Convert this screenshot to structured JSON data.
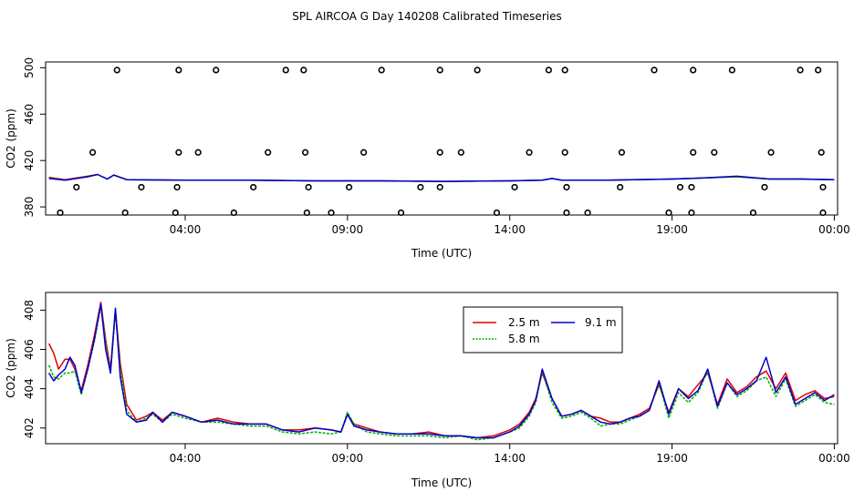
{
  "title": "SPL AIRCOA G  Day 140208  Calibrated Timeseries",
  "colors": {
    "c25": "#e00000",
    "c58": "#00b000",
    "c91": "#0000cc"
  },
  "chart_data": [
    {
      "type": "line",
      "name": "top",
      "xlabel": "Time (UTC)",
      "ylabel": "CO2 (ppm)",
      "xlim": [
        -0.3,
        24.1
      ],
      "ylim": [
        373,
        505
      ],
      "xticks": [
        4,
        9,
        14,
        19,
        24
      ],
      "xtick_labels": [
        "04:00",
        "09:00",
        "14:00",
        "19:00",
        "00:00"
      ],
      "yticks": [
        380,
        420,
        460,
        500
      ],
      "ytick_labels": [
        "380",
        "420",
        "460",
        "500"
      ],
      "legend": "none",
      "outlier_points": [
        [
          1.9,
          498
        ],
        [
          3.8,
          498
        ],
        [
          4.95,
          498
        ],
        [
          7.1,
          498
        ],
        [
          7.65,
          498
        ],
        [
          10.05,
          498
        ],
        [
          11.85,
          498
        ],
        [
          13.0,
          498
        ],
        [
          15.2,
          498
        ],
        [
          15.7,
          498
        ],
        [
          18.45,
          498
        ],
        [
          19.65,
          498
        ],
        [
          20.85,
          498
        ],
        [
          22.95,
          498
        ],
        [
          23.5,
          498
        ],
        [
          1.15,
          427
        ],
        [
          3.8,
          427
        ],
        [
          4.4,
          427
        ],
        [
          6.55,
          427
        ],
        [
          7.7,
          427
        ],
        [
          9.5,
          427
        ],
        [
          11.85,
          427
        ],
        [
          12.5,
          427
        ],
        [
          14.6,
          427
        ],
        [
          15.7,
          427
        ],
        [
          17.45,
          427
        ],
        [
          19.65,
          427
        ],
        [
          20.3,
          427
        ],
        [
          22.05,
          427
        ],
        [
          23.6,
          427
        ],
        [
          0.65,
          397
        ],
        [
          2.65,
          397
        ],
        [
          3.75,
          397
        ],
        [
          6.1,
          397
        ],
        [
          7.8,
          397
        ],
        [
          9.05,
          397
        ],
        [
          11.25,
          397
        ],
        [
          11.85,
          397
        ],
        [
          14.15,
          397
        ],
        [
          15.75,
          397
        ],
        [
          17.4,
          397
        ],
        [
          19.25,
          397
        ],
        [
          19.6,
          397
        ],
        [
          21.85,
          397
        ],
        [
          23.65,
          397
        ],
        [
          0.15,
          375
        ],
        [
          2.15,
          375
        ],
        [
          3.7,
          375
        ],
        [
          5.5,
          375
        ],
        [
          7.75,
          375
        ],
        [
          8.5,
          375
        ],
        [
          10.65,
          375
        ],
        [
          13.6,
          375
        ],
        [
          15.75,
          375
        ],
        [
          16.4,
          375
        ],
        [
          18.9,
          375
        ],
        [
          19.6,
          375
        ],
        [
          21.5,
          375
        ],
        [
          23.65,
          375
        ]
      ],
      "series": [
        {
          "name": "2.5 m",
          "color": "#e00000",
          "x": [
            -0.2,
            0.3,
            1.0,
            1.3,
            1.6,
            1.8,
            2.2,
            4,
            6,
            8,
            10,
            12,
            14,
            15,
            15.3,
            15.6,
            17,
            19,
            20,
            21,
            22,
            23,
            24
          ],
          "y": [
            405.5,
            403.5,
            406.5,
            408.0,
            404.0,
            407.5,
            403.5,
            403.0,
            403.0,
            402.5,
            402.5,
            402.0,
            402.5,
            403.0,
            404.5,
            403.0,
            403.0,
            404.0,
            405.0,
            406.0,
            404.0,
            404.0,
            403.5
          ]
        },
        {
          "name": "5.8 m",
          "color": "#00b000",
          "x": [
            -0.2,
            0.3,
            1.0,
            1.3,
            1.6,
            1.8,
            2.2,
            4,
            6,
            8,
            10,
            12,
            14,
            15,
            15.3,
            15.6,
            17,
            19,
            20,
            21,
            22,
            23,
            24
          ],
          "y": [
            405.0,
            403.0,
            406.0,
            408.0,
            404.0,
            407.5,
            403.5,
            403.0,
            403.0,
            402.5,
            402.5,
            402.0,
            402.5,
            403.0,
            404.5,
            403.0,
            403.0,
            404.0,
            405.0,
            406.0,
            404.0,
            404.0,
            403.5
          ]
        },
        {
          "name": "9.1 m",
          "color": "#0000cc",
          "x": [
            -0.2,
            0.3,
            1.0,
            1.3,
            1.6,
            1.8,
            2.2,
            4,
            6,
            8,
            10,
            12,
            14,
            15,
            15.3,
            15.6,
            17,
            19,
            20,
            21,
            22,
            23,
            24
          ],
          "y": [
            404.5,
            403.0,
            406.0,
            408.0,
            404.0,
            407.5,
            403.5,
            403.0,
            403.0,
            402.5,
            402.5,
            402.0,
            402.5,
            403.0,
            404.5,
            403.0,
            403.0,
            404.0,
            405.0,
            406.5,
            404.0,
            404.0,
            403.5
          ]
        }
      ]
    },
    {
      "type": "line",
      "name": "bottom",
      "xlabel": "Time (UTC)",
      "ylabel": "CO2 (ppm)",
      "xlim": [
        -0.3,
        24.1
      ],
      "ylim": [
        401.2,
        408.9
      ],
      "xticks": [
        4,
        9,
        14,
        19,
        24
      ],
      "xtick_labels": [
        "04:00",
        "09:00",
        "14:00",
        "19:00",
        "00:00"
      ],
      "yticks": [
        402,
        404,
        406,
        408
      ],
      "ytick_labels": [
        "402",
        "404",
        "406",
        "408"
      ],
      "legend": "top-center",
      "legend_entries": [
        {
          "label": "2.5 m",
          "color": "#e00000"
        },
        {
          "label": "5.8 m",
          "color": "#00b000"
        },
        {
          "label": "9.1 m",
          "color": "#0000cc"
        }
      ],
      "series": [
        {
          "name": "2.5 m",
          "color": "#e00000",
          "x": [
            -0.2,
            -0.05,
            0.1,
            0.3,
            0.45,
            0.6,
            0.8,
            1.0,
            1.2,
            1.4,
            1.55,
            1.7,
            1.85,
            2.0,
            2.2,
            2.5,
            2.8,
            3.0,
            3.3,
            3.6,
            4.0,
            4.5,
            5.0,
            5.5,
            6.0,
            6.5,
            7.0,
            7.5,
            8.0,
            8.5,
            8.8,
            9.0,
            9.2,
            9.6,
            10.0,
            10.5,
            11.0,
            11.5,
            12.0,
            12.5,
            13.0,
            13.5,
            14.0,
            14.3,
            14.6,
            14.8,
            15.0,
            15.3,
            15.6,
            15.9,
            16.2,
            16.5,
            16.8,
            17.1,
            17.4,
            17.7,
            18.0,
            18.3,
            18.6,
            18.9,
            19.2,
            19.5,
            19.8,
            20.1,
            20.4,
            20.7,
            21.0,
            21.3,
            21.6,
            21.9,
            22.2,
            22.5,
            22.8,
            23.1,
            23.4,
            23.7,
            24.0
          ],
          "y": [
            406.3,
            405.8,
            405.0,
            405.5,
            405.5,
            405.0,
            403.9,
            405.2,
            406.7,
            408.4,
            406.5,
            405.0,
            408.0,
            405.3,
            403.2,
            402.4,
            402.6,
            402.8,
            402.4,
            402.8,
            402.6,
            402.3,
            402.5,
            402.3,
            402.2,
            402.2,
            401.9,
            401.9,
            402.0,
            401.9,
            401.8,
            402.7,
            402.2,
            402.0,
            401.8,
            401.7,
            401.7,
            401.8,
            401.6,
            401.6,
            401.5,
            401.6,
            401.9,
            402.2,
            402.8,
            403.5,
            404.8,
            403.5,
            402.6,
            402.7,
            402.9,
            402.6,
            402.5,
            402.3,
            402.3,
            402.5,
            402.7,
            403.0,
            404.2,
            402.8,
            404.0,
            403.6,
            404.2,
            404.8,
            403.2,
            404.5,
            403.8,
            404.1,
            404.6,
            404.9,
            404.0,
            404.8,
            403.4,
            403.7,
            403.9,
            403.5,
            403.6
          ]
        },
        {
          "name": "5.8 m",
          "color": "#00b000",
          "x": [
            -0.2,
            -0.05,
            0.1,
            0.3,
            0.45,
            0.6,
            0.8,
            1.0,
            1.2,
            1.4,
            1.55,
            1.7,
            1.85,
            2.0,
            2.2,
            2.5,
            2.8,
            3.0,
            3.3,
            3.6,
            4.0,
            4.5,
            5.0,
            5.5,
            6.0,
            6.5,
            7.0,
            7.5,
            8.0,
            8.5,
            8.8,
            9.0,
            9.2,
            9.6,
            10.0,
            10.5,
            11.0,
            11.5,
            12.0,
            12.5,
            13.0,
            13.5,
            14.0,
            14.3,
            14.6,
            14.8,
            15.0,
            15.3,
            15.6,
            15.9,
            16.2,
            16.5,
            16.8,
            17.1,
            17.4,
            17.7,
            18.0,
            18.3,
            18.6,
            18.9,
            19.2,
            19.5,
            19.8,
            20.1,
            20.4,
            20.7,
            21.0,
            21.3,
            21.6,
            21.9,
            22.2,
            22.5,
            22.8,
            23.1,
            23.4,
            23.7,
            24.0
          ],
          "y": [
            405.2,
            404.6,
            404.5,
            404.8,
            404.8,
            404.9,
            403.7,
            405.0,
            406.4,
            408.2,
            406.3,
            404.8,
            407.9,
            405.0,
            402.9,
            402.3,
            402.5,
            402.7,
            402.3,
            402.7,
            402.5,
            402.3,
            402.3,
            402.2,
            402.1,
            402.1,
            401.8,
            401.7,
            401.8,
            401.7,
            401.8,
            402.8,
            402.2,
            401.8,
            401.7,
            401.6,
            401.6,
            401.6,
            401.5,
            401.6,
            401.4,
            401.5,
            401.8,
            402.0,
            402.6,
            403.3,
            404.9,
            403.3,
            402.5,
            402.6,
            402.8,
            402.5,
            402.1,
            402.2,
            402.2,
            402.4,
            402.6,
            402.9,
            404.3,
            402.5,
            403.8,
            403.3,
            403.8,
            404.9,
            403.0,
            404.3,
            403.6,
            403.9,
            404.4,
            404.6,
            403.6,
            404.5,
            403.1,
            403.4,
            403.7,
            403.3,
            403.2
          ]
        },
        {
          "name": "9.1 m",
          "color": "#0000cc",
          "x": [
            -0.2,
            -0.05,
            0.1,
            0.3,
            0.45,
            0.6,
            0.8,
            1.0,
            1.2,
            1.4,
            1.55,
            1.7,
            1.85,
            2.0,
            2.2,
            2.5,
            2.8,
            3.0,
            3.3,
            3.6,
            4.0,
            4.5,
            5.0,
            5.5,
            6.0,
            6.5,
            7.0,
            7.5,
            8.0,
            8.5,
            8.8,
            9.0,
            9.2,
            9.6,
            10.0,
            10.5,
            11.0,
            11.5,
            12.0,
            12.5,
            13.0,
            13.5,
            14.0,
            14.3,
            14.6,
            14.8,
            15.0,
            15.3,
            15.6,
            15.9,
            16.2,
            16.5,
            16.8,
            17.1,
            17.4,
            17.7,
            18.0,
            18.3,
            18.6,
            18.9,
            19.2,
            19.5,
            19.8,
            20.1,
            20.4,
            20.7,
            21.0,
            21.3,
            21.6,
            21.9,
            22.2,
            22.5,
            22.8,
            23.1,
            23.4,
            23.7,
            24.0
          ],
          "y": [
            404.8,
            404.4,
            404.7,
            405.0,
            405.6,
            405.2,
            403.8,
            405.0,
            406.5,
            408.3,
            406.0,
            404.8,
            408.1,
            404.6,
            402.7,
            402.3,
            402.4,
            402.8,
            402.3,
            402.8,
            402.6,
            402.3,
            402.4,
            402.2,
            402.2,
            402.2,
            401.9,
            401.8,
            402.0,
            401.9,
            401.8,
            402.7,
            402.1,
            401.9,
            401.8,
            401.7,
            401.7,
            401.7,
            401.6,
            401.6,
            401.5,
            401.5,
            401.8,
            402.1,
            402.7,
            403.4,
            405.0,
            403.5,
            402.6,
            402.7,
            402.9,
            402.6,
            402.3,
            402.2,
            402.3,
            402.5,
            402.6,
            402.9,
            404.4,
            402.7,
            404.0,
            403.5,
            403.9,
            405.0,
            403.1,
            404.3,
            403.7,
            404.0,
            404.4,
            405.6,
            403.8,
            404.6,
            403.2,
            403.5,
            403.8,
            403.4,
            403.7
          ]
        }
      ]
    }
  ]
}
